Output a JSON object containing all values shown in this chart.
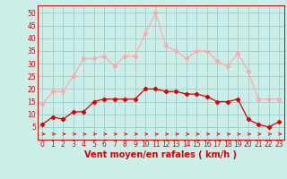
{
  "hours": [
    0,
    1,
    2,
    3,
    4,
    5,
    6,
    7,
    8,
    9,
    10,
    11,
    12,
    13,
    14,
    15,
    16,
    17,
    18,
    19,
    20,
    21,
    22,
    23
  ],
  "wind_avg": [
    6,
    9,
    8,
    11,
    11,
    15,
    16,
    16,
    16,
    16,
    20,
    20,
    19,
    19,
    18,
    18,
    17,
    15,
    15,
    16,
    8,
    6,
    5,
    7
  ],
  "wind_gust": [
    14,
    19,
    19,
    25,
    32,
    32,
    33,
    29,
    33,
    33,
    42,
    50,
    37,
    35,
    32,
    35,
    35,
    31,
    29,
    34,
    27,
    16,
    16,
    16
  ],
  "avg_color": "#dd0000",
  "gust_color": "#ffaaaa",
  "dir_color": "#dd0000",
  "bg_color": "#cceee8",
  "grid_color": "#99cccc",
  "xlabel": "Vent moyen/en rafales ( km/h )",
  "ylim": [
    0,
    53
  ],
  "yticks": [
    5,
    10,
    15,
    20,
    25,
    30,
    35,
    40,
    45,
    50
  ],
  "tick_color": "#dd0000",
  "label_fontsize": 7,
  "tick_fontsize": 5.5
}
